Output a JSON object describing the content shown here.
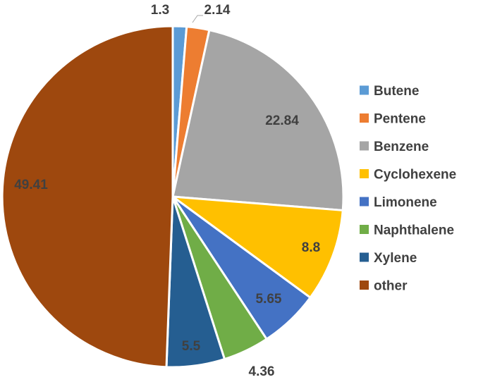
{
  "chart_data": {
    "type": "pie",
    "title": "",
    "legend_position": "right",
    "series": [
      {
        "name": "Butene",
        "value": 1.3,
        "label": "1.3",
        "color": "#5B9BD5"
      },
      {
        "name": "Pentene",
        "value": 2.14,
        "label": "2.14",
        "color": "#ED7D31"
      },
      {
        "name": "Benzene",
        "value": 22.84,
        "label": "22.84",
        "color": "#A5A5A5"
      },
      {
        "name": "Cyclohexene",
        "value": 8.8,
        "label": "8.8",
        "color": "#FFC000"
      },
      {
        "name": "Limonene",
        "value": 5.65,
        "label": "5.65",
        "color": "#4472C4"
      },
      {
        "name": "Naphthalene",
        "value": 4.36,
        "label": "4.36",
        "color": "#70AD47"
      },
      {
        "name": "Xylene",
        "value": 5.5,
        "label": "5.5",
        "color": "#255E91"
      },
      {
        "name": "other",
        "value": 49.41,
        "label": "49.41",
        "color": "#9E480E"
      }
    ]
  }
}
